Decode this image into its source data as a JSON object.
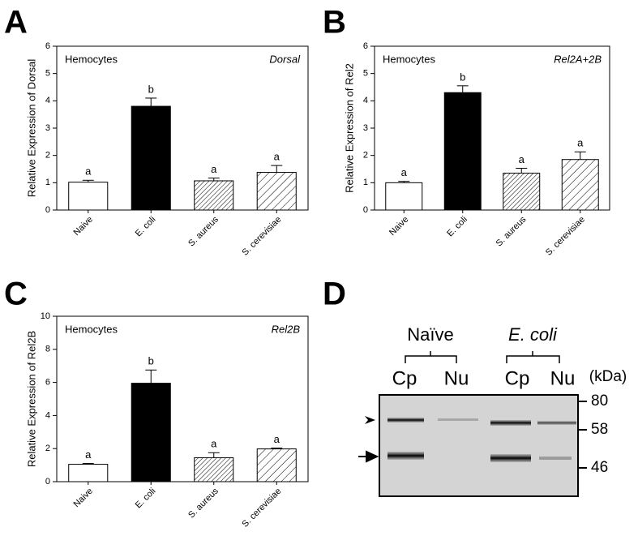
{
  "chart_data": [
    {
      "type": "bar",
      "panel": "A",
      "note": "Hemocytes",
      "gene": "Dorsal",
      "ylabel": "Relative Expression of Dorsal",
      "categories": [
        "Naive",
        "E. coli",
        "S. aureus",
        "S. cerevisiae"
      ],
      "values": [
        1.02,
        3.8,
        1.07,
        1.38
      ],
      "errors": [
        0.07,
        0.3,
        0.1,
        0.25
      ],
      "significance": [
        "a",
        "b",
        "a",
        "a"
      ],
      "colors": [
        "#ffffff",
        "#000000",
        "#ffffff",
        "#ffffff"
      ],
      "hatch": [
        null,
        null,
        "fine",
        "coarse"
      ],
      "ylim": [
        0,
        6
      ],
      "yticks": [
        0,
        1,
        2,
        3,
        4,
        5,
        6
      ]
    },
    {
      "type": "bar",
      "panel": "B",
      "note": "Hemocytes",
      "gene": "Rel2A+2B",
      "ylabel": "Relative Expression of Rel2",
      "categories": [
        "Naive",
        "E. coli",
        "S. aureus",
        "S. cerevisiae"
      ],
      "values": [
        1.0,
        4.3,
        1.35,
        1.85
      ],
      "errors": [
        0.05,
        0.25,
        0.18,
        0.28
      ],
      "significance": [
        "a",
        "b",
        "a",
        "a"
      ],
      "colors": [
        "#ffffff",
        "#000000",
        "#ffffff",
        "#ffffff"
      ],
      "hatch": [
        null,
        null,
        "fine",
        "coarse"
      ],
      "ylim": [
        0,
        6
      ],
      "yticks": [
        0,
        1,
        2,
        3,
        4,
        5,
        6
      ]
    },
    {
      "type": "bar",
      "panel": "C",
      "note": "Hemocytes",
      "gene": "Rel2B",
      "ylabel": "Relative Expression of Rel2B",
      "categories": [
        "Naive",
        "E. coli",
        "S. aureus",
        "S. cerevisiae"
      ],
      "values": [
        1.05,
        5.95,
        1.45,
        1.98
      ],
      "errors": [
        0.05,
        0.8,
        0.3,
        0.05
      ],
      "significance": [
        "a",
        "b",
        "a",
        "a"
      ],
      "colors": [
        "#ffffff",
        "#000000",
        "#ffffff",
        "#ffffff"
      ],
      "hatch": [
        null,
        null,
        "fine",
        "coarse"
      ],
      "ylim": [
        0,
        10
      ],
      "yticks": [
        0,
        2,
        4,
        6,
        8,
        10
      ]
    }
  ],
  "blot": {
    "panel": "D",
    "groups": [
      "Naïve",
      "E. coli"
    ],
    "lanes": [
      "Cp",
      "Nu",
      "Cp",
      "Nu"
    ],
    "unit": "(kDa)",
    "markers": [
      80,
      58,
      46
    ]
  }
}
